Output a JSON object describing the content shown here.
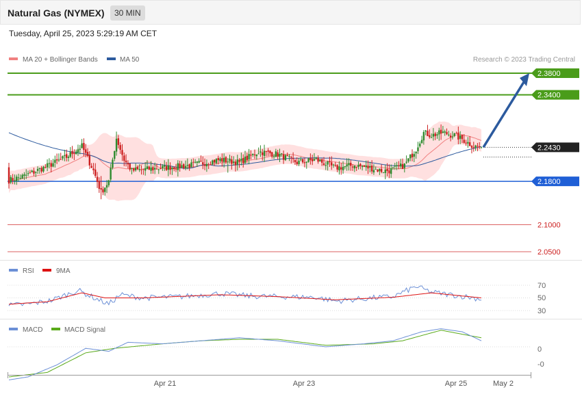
{
  "header": {
    "title": "Natural Gas (NYMEX)",
    "timeframe": "30 MIN"
  },
  "datetime": "Tuesday, April 25, 2023 5:29:19 AM CET",
  "legend": {
    "ma20": "MA 20 + Bollinger Bands",
    "ma50": "MA 50"
  },
  "copyright": "Research © 2023 Trading Central",
  "colors": {
    "up": "#2e8b2e",
    "down": "#cc1f1f",
    "bands": "#ffd6d6",
    "ma20": "#f08080",
    "ma50": "#2c5a9e",
    "resistance": "#4a9c1a",
    "support_blue": "#1f5fd6",
    "support_red": "#cc1f1f",
    "arrow": "#2c5a9e",
    "rsi": "#6b8fd6",
    "rsi_ma": "#dd1111",
    "macd": "#6b8fd6",
    "macd_signal": "#5aaa1a"
  },
  "levels": [
    {
      "label": "2.3800",
      "value": 2.38,
      "kind": "resistance"
    },
    {
      "label": "2.3400",
      "value": 2.34,
      "kind": "resistance"
    },
    {
      "label": "2.2430",
      "value": 2.243,
      "kind": "last"
    },
    {
      "label": "2.1800",
      "value": 2.18,
      "kind": "support_blue"
    },
    {
      "label": "2.1000",
      "value": 2.1,
      "kind": "support_red"
    },
    {
      "label": "2.0500",
      "value": 2.05,
      "kind": "support_red"
    }
  ],
  "rsi_panel": {
    "legend_rsi": "RSI",
    "legend_ma": "9MA",
    "ticks": [
      "70",
      "50",
      "30"
    ]
  },
  "macd_panel": {
    "legend_macd": "MACD",
    "legend_signal": "MACD Signal",
    "ticks": [
      "0",
      "-0"
    ]
  },
  "x_axis": [
    "Apr 21",
    "Apr 23",
    "Apr 25",
    "May 2"
  ],
  "chart_data": {
    "type": "candlestick",
    "title": "Natural Gas (NYMEX)",
    "timeframe": "30 MIN",
    "ylim": [
      2.04,
      2.4
    ],
    "projection": {
      "from": 2.243,
      "to": 2.38
    },
    "price_keypoints": [
      [
        0,
        2.182
      ],
      [
        8,
        2.19
      ],
      [
        18,
        2.205
      ],
      [
        30,
        2.225
      ],
      [
        38,
        2.245
      ],
      [
        44,
        2.2
      ],
      [
        48,
        2.16
      ],
      [
        52,
        2.18
      ],
      [
        56,
        2.26
      ],
      [
        60,
        2.22
      ],
      [
        64,
        2.2
      ],
      [
        80,
        2.205
      ],
      [
        95,
        2.21
      ],
      [
        110,
        2.22
      ],
      [
        120,
        2.215
      ],
      [
        130,
        2.235
      ],
      [
        140,
        2.23
      ],
      [
        150,
        2.215
      ],
      [
        160,
        2.22
      ],
      [
        170,
        2.205
      ],
      [
        180,
        2.21
      ],
      [
        188,
        2.205
      ],
      [
        194,
        2.2
      ],
      [
        198,
        2.2
      ],
      [
        206,
        2.21
      ],
      [
        212,
        2.24
      ],
      [
        216,
        2.27
      ],
      [
        220,
        2.265
      ],
      [
        226,
        2.27
      ],
      [
        232,
        2.265
      ],
      [
        236,
        2.258
      ],
      [
        242,
        2.245
      ],
      [
        246,
        2.243
      ]
    ],
    "rsi_keypoints": [
      [
        0,
        38
      ],
      [
        10,
        40
      ],
      [
        22,
        46
      ],
      [
        36,
        62
      ],
      [
        46,
        48
      ],
      [
        52,
        40
      ],
      [
        58,
        55
      ],
      [
        70,
        50
      ],
      [
        90,
        52
      ],
      [
        110,
        57
      ],
      [
        125,
        53
      ],
      [
        140,
        52
      ],
      [
        160,
        51
      ],
      [
        170,
        45
      ],
      [
        190,
        50
      ],
      [
        200,
        52
      ],
      [
        212,
        68
      ],
      [
        220,
        59
      ],
      [
        230,
        55
      ],
      [
        240,
        51
      ],
      [
        246,
        48
      ]
    ],
    "rsi_ma_keypoints": [
      [
        0,
        40
      ],
      [
        20,
        44
      ],
      [
        38,
        58
      ],
      [
        50,
        50
      ],
      [
        70,
        50
      ],
      [
        110,
        55
      ],
      [
        140,
        52
      ],
      [
        170,
        47
      ],
      [
        200,
        51
      ],
      [
        220,
        58
      ],
      [
        246,
        50
      ]
    ],
    "macd_keypoints": [
      [
        0,
        -0.022
      ],
      [
        10,
        -0.02
      ],
      [
        25,
        -0.012
      ],
      [
        40,
        -0.001
      ],
      [
        52,
        -0.003
      ],
      [
        62,
        0.003
      ],
      [
        80,
        0.002
      ],
      [
        100,
        0.004
      ],
      [
        120,
        0.006
      ],
      [
        140,
        0.004
      ],
      [
        165,
        0.0
      ],
      [
        185,
        0.002
      ],
      [
        200,
        0.004
      ],
      [
        215,
        0.01
      ],
      [
        225,
        0.012
      ],
      [
        236,
        0.01
      ],
      [
        246,
        0.004
      ]
    ],
    "macd_signal_keypoints": [
      [
        0,
        -0.02
      ],
      [
        20,
        -0.017
      ],
      [
        40,
        -0.004
      ],
      [
        55,
        -0.001
      ],
      [
        80,
        0.002
      ],
      [
        100,
        0.004
      ],
      [
        120,
        0.005
      ],
      [
        140,
        0.005
      ],
      [
        165,
        0.001
      ],
      [
        190,
        0.002
      ],
      [
        205,
        0.004
      ],
      [
        225,
        0.011
      ],
      [
        246,
        0.006
      ]
    ]
  }
}
